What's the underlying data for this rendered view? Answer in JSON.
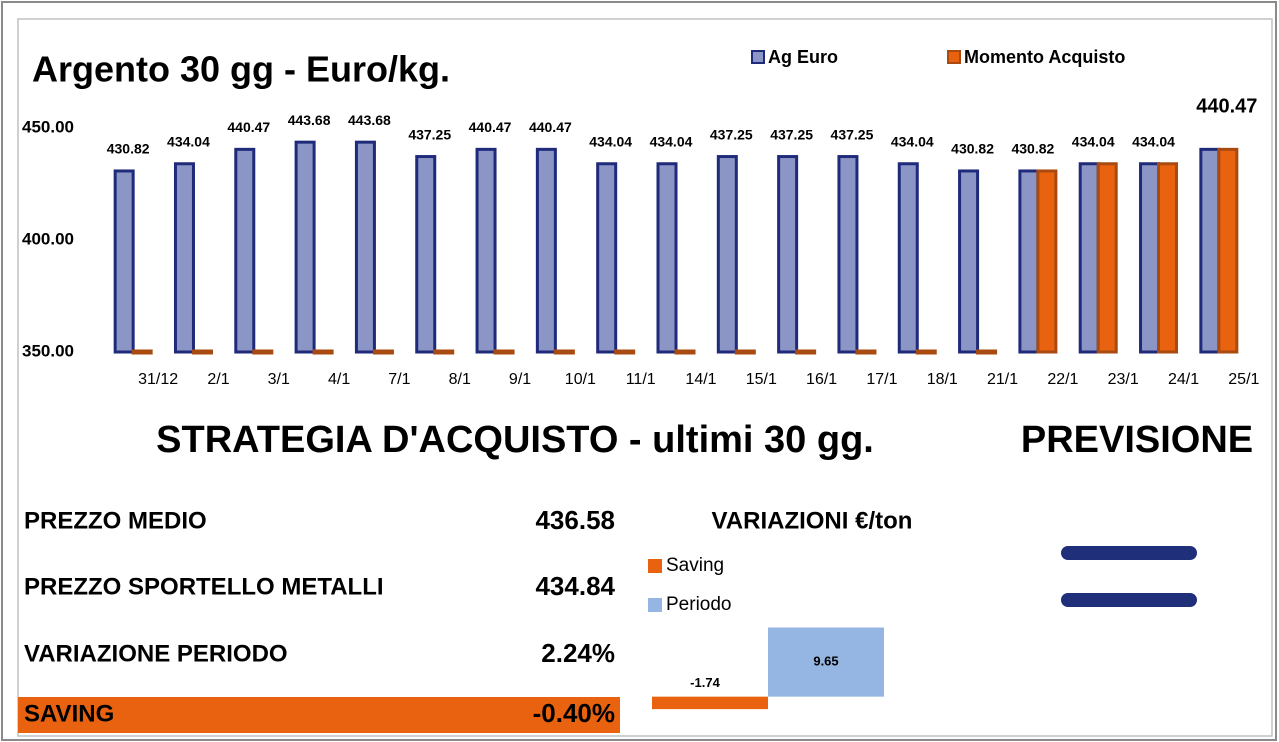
{
  "chart_data": [
    {
      "type": "bar",
      "title": "Argento 30 gg - Euro/kg.",
      "categories": [
        "31/12",
        "2/1",
        "3/1",
        "4/1",
        "7/1",
        "8/1",
        "9/1",
        "10/1",
        "11/1",
        "14/1",
        "15/1",
        "16/1",
        "17/1",
        "18/1",
        "21/1",
        "22/1",
        "23/1",
        "24/1",
        "25/1"
      ],
      "series": [
        {
          "name": "Ag Euro",
          "color": "#8c96c6",
          "values": [
            430.82,
            434.04,
            440.47,
            443.68,
            443.68,
            437.25,
            440.47,
            440.47,
            434.04,
            434.04,
            437.25,
            437.25,
            437.25,
            434.04,
            430.82,
            430.82,
            434.04,
            434.04,
            440.47
          ]
        },
        {
          "name": "Momento Acquisto",
          "color": "#e8620f",
          "values": [
            350,
            350,
            350,
            350,
            350,
            350,
            350,
            350,
            350,
            350,
            350,
            350,
            350,
            350,
            350,
            430.82,
            434.04,
            434.04,
            440.47
          ]
        }
      ],
      "ylim": [
        350,
        450
      ],
      "yticks": [
        {
          "value": 350,
          "label": "350.00"
        },
        {
          "value": 400,
          "label": "400.00"
        },
        {
          "value": 450,
          "label": "450.00"
        }
      ]
    },
    {
      "type": "bar",
      "title": "VARIAZIONI €/ton",
      "series": [
        {
          "name": "Saving",
          "color": "#e8620f",
          "values": [
            -1.74
          ]
        },
        {
          "name": "Periodo",
          "color": "#95b5e2",
          "values": [
            9.65
          ]
        }
      ],
      "ylim": [
        -2,
        10
      ]
    }
  ],
  "summary": {
    "title": "STRATEGIA D'ACQUISTO - ultimi 30 gg.",
    "forecast": "PREVISIONE",
    "rows": [
      {
        "label": "PREZZO MEDIO",
        "value": "436.58"
      },
      {
        "label": "PREZZO SPORTELLO METALLI",
        "value": "434.84"
      },
      {
        "label": "VARIAZIONE PERIODO",
        "value": "2.24%"
      },
      {
        "label": "SAVING",
        "value": "-0.40%"
      }
    ]
  }
}
